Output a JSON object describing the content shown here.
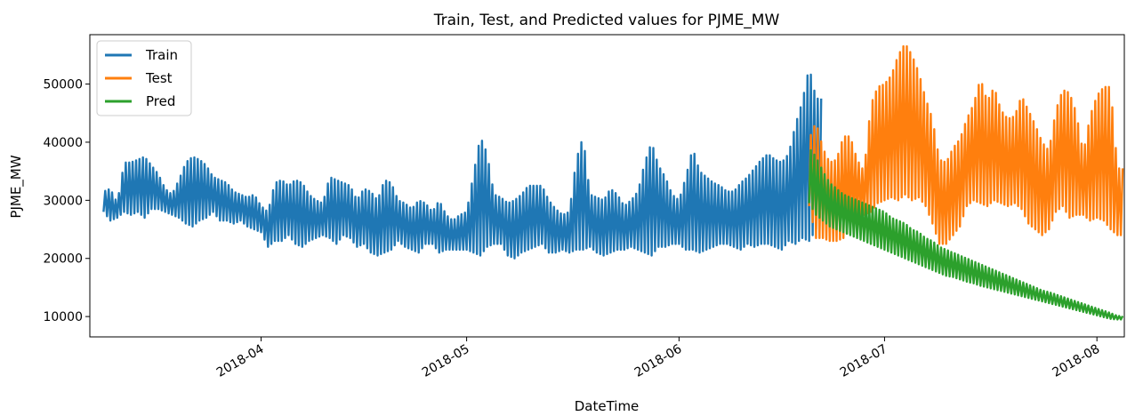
{
  "chart_data": {
    "type": "line",
    "title": "Train, Test, and Predicted values for PJME_MW",
    "xlabel": "DateTime",
    "ylabel": "PJME_MW",
    "x_range": [
      "2018-03-07",
      "2018-08-05"
    ],
    "ylim": [
      6500,
      58500
    ],
    "y_ticks": [
      10000,
      20000,
      30000,
      40000,
      50000
    ],
    "x_ticks": [
      {
        "date": "2018-04-01",
        "label": "2018-04"
      },
      {
        "date": "2018-05-01",
        "label": "2018-05"
      },
      {
        "date": "2018-06-01",
        "label": "2018-06"
      },
      {
        "date": "2018-07-01",
        "label": "2018-07"
      },
      {
        "date": "2018-08-01",
        "label": "2018-08"
      }
    ],
    "grid": false,
    "legend_position": "top-left",
    "sampling": "daily minimum and maximum of the plotted line",
    "series": [
      {
        "name": "Train",
        "color": "#1f77b4",
        "start_date": "2018-03-09",
        "daily_min": [
          28000,
          26500,
          27000,
          28000,
          27500,
          28000,
          27000,
          28500,
          28500,
          28000,
          27500,
          27000,
          26000,
          25500,
          26500,
          27000,
          28000,
          26500,
          26500,
          26000,
          26500,
          25500,
          25000,
          24500,
          22000,
          23000,
          23000,
          24000,
          22500,
          22000,
          23000,
          23500,
          24000,
          23500,
          22500,
          24000,
          23500,
          22000,
          22500,
          21000,
          20500,
          21000,
          21500,
          23000,
          22000,
          21500,
          21000,
          22500,
          22500,
          21000,
          21500,
          21500,
          21500,
          21500,
          21000,
          20500,
          22000,
          22500,
          22500,
          20500,
          20000,
          21000,
          21500,
          22000,
          22500,
          21000,
          21000,
          21500,
          21000,
          21500,
          21500,
          22000,
          21000,
          20500,
          21000,
          21500,
          21500,
          22000,
          21500,
          21000,
          20500,
          22000,
          22000,
          22500,
          22500,
          21500,
          21500,
          21000,
          21500,
          22000,
          22500,
          22500,
          22000,
          21500,
          22500,
          22000,
          22500,
          22500,
          22000,
          21500,
          23000,
          22500,
          23500,
          23000,
          25000
        ],
        "daily_max": [
          31500,
          32000,
          29500,
          36500,
          36500,
          37000,
          37500,
          36000,
          34500,
          32000,
          31000,
          33500,
          36500,
          37500,
          37000,
          36000,
          34000,
          33500,
          33000,
          31500,
          31000,
          30500,
          31000,
          29000,
          28000,
          33000,
          33500,
          32500,
          33500,
          33000,
          31000,
          30000,
          29500,
          34000,
          33500,
          33000,
          32500,
          30000,
          32000,
          31500,
          30000,
          33500,
          33000,
          30000,
          29500,
          28500,
          30000,
          29500,
          28000,
          30000,
          27500,
          26500,
          27500,
          28000,
          34500,
          41000,
          38000,
          31000,
          30500,
          29500,
          30000,
          31000,
          32500,
          32500,
          32500,
          30000,
          28500,
          27500,
          28000,
          37000,
          41000,
          31000,
          30500,
          30000,
          32000,
          31000,
          29000,
          30000,
          31500,
          36500,
          40000,
          36000,
          34000,
          31000,
          30000,
          34000,
          39000,
          35000,
          34000,
          33000,
          32500,
          31500,
          31500,
          33000,
          34000,
          35500,
          37000,
          38000,
          37000,
          36500,
          38000,
          43000,
          47000,
          53000,
          47500
        ]
      },
      {
        "name": "Test",
        "color": "#ff7f0e",
        "start_date": "2018-06-20",
        "daily_min": [
          29000,
          23500,
          23500,
          23000,
          23000,
          23500,
          25000,
          27000,
          27500,
          28000,
          29500,
          30000,
          30500,
          30000,
          31000,
          30000,
          30500,
          29000,
          26000,
          22500,
          22500,
          24000,
          25500,
          29000,
          30000,
          29500,
          29000,
          30000,
          29500,
          29000,
          29500,
          28500,
          26000,
          25000,
          24000,
          25000,
          28000,
          29000,
          27000,
          27500,
          27500,
          26500,
          27000,
          26500,
          25000,
          24000
        ],
        "daily_max": [
          40500,
          43500,
          39000,
          36500,
          37000,
          41000,
          41000,
          37000,
          35000,
          46500,
          49500,
          50000,
          51500,
          55000,
          57000,
          55000,
          52000,
          47500,
          44000,
          37000,
          36500,
          39000,
          40500,
          44000,
          46500,
          51000,
          47000,
          49500,
          45500,
          44000,
          44500,
          48000,
          45500,
          43000,
          40000,
          38500,
          45500,
          49000,
          48500,
          45000,
          38000,
          44500,
          48000,
          49500,
          49500,
          35500
        ]
      },
      {
        "name": "Pred",
        "color": "#2ca02c",
        "start_date": "2018-06-20",
        "daily_min": [
          29500,
          27500,
          26500,
          25500,
          25000,
          24500,
          24000,
          23500,
          23000,
          22500,
          22000,
          21500,
          21000,
          20500,
          20000,
          19500,
          19000,
          18500,
          18000,
          17500,
          17000,
          16800,
          16400,
          16000,
          15700,
          15300,
          15000,
          14700,
          14400,
          14100,
          13800,
          13500,
          13200,
          12900,
          12600,
          12300,
          12000,
          11700,
          11400,
          11100,
          10800,
          10500,
          10200,
          9900,
          9600,
          9500
        ],
        "daily_max": [
          39000,
          37500,
          35000,
          33000,
          32000,
          31000,
          30500,
          30000,
          29500,
          29000,
          28500,
          28000,
          27000,
          26500,
          26000,
          25000,
          24500,
          23500,
          23000,
          22000,
          21500,
          21000,
          20500,
          20000,
          19500,
          19000,
          18500,
          18000,
          17500,
          17000,
          16500,
          16000,
          15500,
          15000,
          14500,
          14200,
          13800,
          13400,
          13000,
          12600,
          12200,
          11800,
          11400,
          11000,
          10600,
          10100
        ]
      }
    ]
  }
}
